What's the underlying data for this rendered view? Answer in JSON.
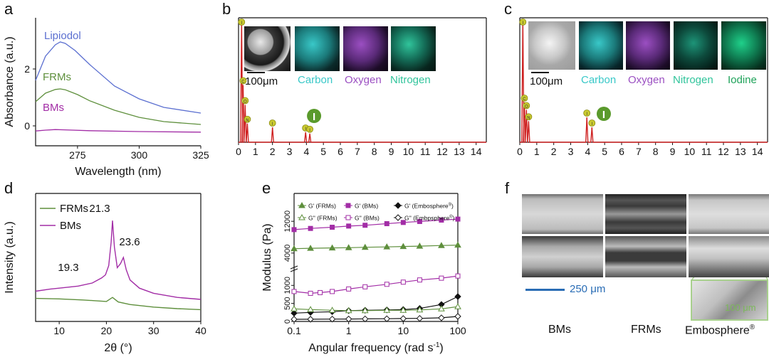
{
  "panels": {
    "a": "a",
    "b": "b",
    "c": "c",
    "d": "d",
    "e": "e",
    "f": "f"
  },
  "colors": {
    "lipiodol": "#5b6fd0",
    "frms": "#5e8f3c",
    "bms": "#a22da6",
    "eds": "#cf2222",
    "em": "#111111",
    "carbon": "#39c8c8",
    "oxygen": "#9b4fc2",
    "nitrogen": "#30c49b",
    "iodine": "#1fa25a",
    "scale": "#2a6db5"
  },
  "chart_data": [
    {
      "id": "a",
      "type": "line",
      "xlabel": "Wavelength (nm)",
      "ylabel": "Absorbance (a.u.)",
      "xlim": [
        258,
        325
      ],
      "ylim": [
        -0.7,
        3.8
      ],
      "xticks": [
        "275",
        "300",
        "325"
      ],
      "xtick_values": [
        275,
        300,
        325
      ],
      "yticks": [
        "0",
        "2"
      ],
      "ytick_values": [
        0,
        2
      ],
      "series": [
        {
          "name": "Lipiodol",
          "x": [
            258,
            262,
            266,
            268,
            270,
            274,
            280,
            290,
            300,
            310,
            325
          ],
          "y": [
            1.6,
            2.45,
            2.85,
            2.95,
            2.9,
            2.65,
            2.15,
            1.4,
            0.95,
            0.65,
            0.45
          ]
        },
        {
          "name": "FRMs",
          "x": [
            258,
            262,
            266,
            268,
            270,
            275,
            280,
            290,
            300,
            310,
            325
          ],
          "y": [
            0.85,
            1.15,
            1.28,
            1.3,
            1.27,
            1.1,
            0.88,
            0.55,
            0.3,
            0.15,
            0.05
          ]
        },
        {
          "name": "BMs",
          "x": [
            258,
            262,
            266,
            270,
            280,
            300,
            325
          ],
          "y": [
            -0.18,
            -0.15,
            -0.13,
            -0.14,
            -0.17,
            -0.2,
            -0.22
          ]
        }
      ]
    },
    {
      "id": "b",
      "type": "bar",
      "xlim": [
        0,
        14.6
      ],
      "ylim": [
        0,
        1
      ],
      "xticks": [
        "0",
        "1",
        "2",
        "3",
        "4",
        "5",
        "6",
        "7",
        "8",
        "9",
        "10",
        "11",
        "12",
        "13",
        "14"
      ],
      "peaks_x": [
        0.18,
        0.27,
        0.39,
        0.52,
        2.0,
        3.95,
        4.2
      ],
      "peaks_y": [
        0.98,
        0.46,
        0.3,
        0.15,
        0.12,
        0.08,
        0.07
      ],
      "markers": [
        "I",
        "C",
        "O",
        "N",
        "I",
        "I",
        "I"
      ],
      "element_label": "I",
      "maps": [
        "Carbon",
        "Oxygen",
        "Nitrogen"
      ],
      "scale": "100μm"
    },
    {
      "id": "c",
      "type": "bar",
      "xlim": [
        0,
        14.6
      ],
      "ylim": [
        0,
        1
      ],
      "xticks": [
        "0",
        "1",
        "2",
        "3",
        "4",
        "5",
        "6",
        "7",
        "8",
        "9",
        "10",
        "11",
        "12",
        "13",
        "14"
      ],
      "peaks_x": [
        0.18,
        0.27,
        0.39,
        0.52,
        3.95,
        4.25
      ],
      "peaks_y": [
        0.98,
        0.32,
        0.26,
        0.17,
        0.2,
        0.12
      ],
      "markers": [
        "I",
        "C",
        "O",
        "N",
        "I",
        "I"
      ],
      "element_label": "I",
      "maps": [
        "Carbon",
        "Oxygen",
        "Nitrogen",
        "Iodine"
      ],
      "scale": "100μm"
    },
    {
      "id": "d",
      "type": "line",
      "xlabel": "2θ (°)",
      "ylabel": "Intensity (a.u.)",
      "xlim": [
        5,
        40
      ],
      "ylim": [
        0,
        1
      ],
      "xticks": [
        "10",
        "20",
        "30",
        "40"
      ],
      "xtick_values": [
        10,
        20,
        30,
        40
      ],
      "series": [
        {
          "name": "BMs",
          "x": [
            5,
            8,
            10,
            14,
            17,
            19,
            19.8,
            20.5,
            21,
            21.3,
            21.7,
            22.3,
            23.0,
            23.6,
            24.2,
            25,
            27,
            30,
            35,
            40
          ],
          "y": [
            0.17,
            0.19,
            0.2,
            0.22,
            0.25,
            0.3,
            0.33,
            0.42,
            0.65,
            0.86,
            0.6,
            0.4,
            0.44,
            0.5,
            0.38,
            0.28,
            0.2,
            0.15,
            0.11,
            0.09
          ]
        },
        {
          "name": "FRMs",
          "x": [
            5,
            10,
            15,
            20,
            21.3,
            22.5,
            25,
            30,
            35,
            40
          ],
          "y": [
            0.1,
            0.095,
            0.085,
            0.07,
            0.11,
            0.065,
            0.04,
            0.015,
            0.0,
            -0.01
          ]
        }
      ],
      "annotations": [
        "19.3",
        "21.3",
        "23.6"
      ]
    },
    {
      "id": "e",
      "type": "line",
      "xlabel": "Angular frequency (rad s",
      "xlabel_sup": "-1",
      "xlabel_end": ")",
      "ylabel": "Modulus (Pa)",
      "xscale": "log",
      "xlim": [
        0.1,
        100
      ],
      "xticks": [
        "0.1",
        "1",
        "10",
        "100"
      ],
      "xtick_values": [
        0.1,
        1,
        10,
        100
      ],
      "yticks_lower": [
        "0",
        "500",
        "1000"
      ],
      "ytick_values_lower": [
        0,
        500,
        1000
      ],
      "ylim_lower": [
        0,
        1400
      ],
      "yticks_upper": [
        "4000",
        "12000"
      ],
      "ytick_values_upper": [
        4000,
        12000
      ],
      "ylim_upper": [
        2000,
        14000
      ],
      "legend": [
        {
          "label": "G' (FRMs)",
          "sup": "",
          "sym": "tri",
          "fill": true,
          "color": "#5e8f3c"
        },
        {
          "label": "G' (BMs)",
          "sup": "",
          "sym": "sq",
          "fill": true,
          "color": "#a22da6"
        },
        {
          "label": "G' (Embosphere",
          "sup": "®",
          "suffix": ")",
          "sym": "dia",
          "fill": true,
          "color": "#111111"
        },
        {
          "label": "G'' (FRMs)",
          "sup": "",
          "sym": "tri",
          "fill": false,
          "color": "#5e8f3c"
        },
        {
          "label": "G'' (BMs)",
          "sup": "",
          "sym": "sq",
          "fill": false,
          "color": "#a22da6"
        },
        {
          "label": "G'' (Embpsphere",
          "sup": "®",
          "suffix": ")",
          "sym": "dia",
          "fill": false,
          "color": "#111111"
        }
      ],
      "series": [
        {
          "name": "G' (BMs)",
          "panel": "upper",
          "x": [
            0.1,
            0.2,
            0.5,
            1,
            2,
            5,
            10,
            20,
            50,
            100
          ],
          "y": [
            9900,
            10200,
            10500,
            10800,
            11000,
            11400,
            11700,
            11950,
            12300,
            12550
          ]
        },
        {
          "name": "G' (FRMs)",
          "panel": "upper",
          "x": [
            0.1,
            0.2,
            0.5,
            1,
            2,
            5,
            10,
            20,
            50,
            100
          ],
          "y": [
            5100,
            5200,
            5300,
            5350,
            5450,
            5550,
            5650,
            5750,
            5900,
            6000
          ]
        },
        {
          "name": "G'' (BMs)",
          "panel": "lower",
          "x": [
            0.1,
            0.2,
            0.3,
            0.5,
            1,
            2,
            5,
            10,
            20,
            50,
            100
          ],
          "y": [
            830,
            780,
            800,
            830,
            900,
            960,
            1030,
            1090,
            1150,
            1200,
            1260
          ]
        },
        {
          "name": "G' (Embosphere)",
          "panel": "lower",
          "x": [
            0.1,
            0.2,
            0.5,
            1,
            2,
            5,
            10,
            20,
            50,
            100
          ],
          "y": [
            230,
            250,
            270,
            300,
            310,
            320,
            330,
            360,
            470,
            690
          ]
        },
        {
          "name": "G'' (FRMs)",
          "panel": "lower",
          "x": [
            0.1,
            0.2,
            0.5,
            1,
            2,
            5,
            10,
            20,
            50,
            100
          ],
          "y": [
            350,
            330,
            310,
            300,
            300,
            310,
            310,
            320,
            350,
            410
          ]
        },
        {
          "name": "G'' (Embpsphere)",
          "panel": "lower",
          "x": [
            0.1,
            0.2,
            0.5,
            1,
            2,
            5,
            10,
            20,
            50,
            100
          ],
          "y": [
            60,
            62,
            65,
            68,
            70,
            75,
            80,
            85,
            100,
            140
          ]
        }
      ]
    }
  ],
  "panel_f": {
    "labels": [
      "BMs",
      "FRMs",
      "Embosphere"
    ],
    "embosphere_sup": "®",
    "scale_main": "250 μm",
    "scale_inset": "100 μm"
  }
}
